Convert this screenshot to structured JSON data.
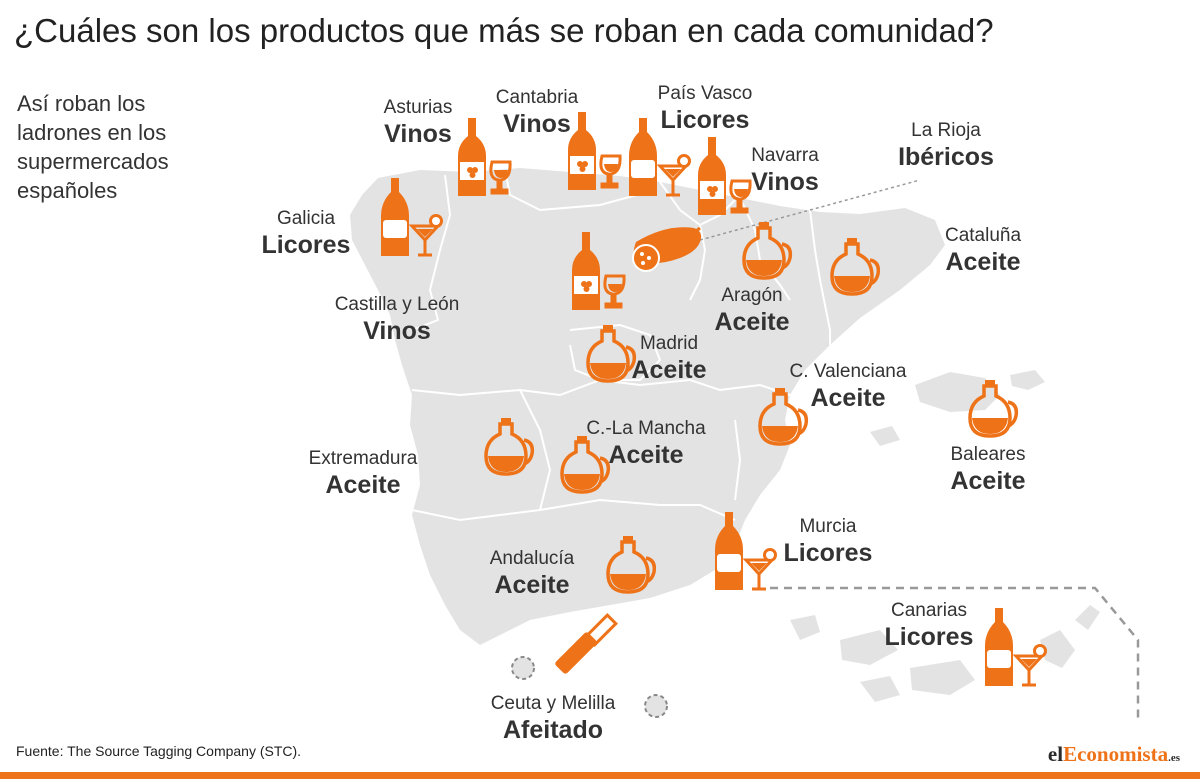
{
  "title": "¿Cuáles son los productos que más se roban en cada comunidad?",
  "subtitle": "Así roban los ladrones en los supermercados españoles",
  "regions": [
    {
      "name": "Asturias",
      "product": "Vinos",
      "icon": "wine-bottle-glass-icon"
    },
    {
      "name": "Cantabria",
      "product": "Vinos",
      "icon": "wine-bottle-glass-icon"
    },
    {
      "name": "País Vasco",
      "product": "Licores",
      "icon": "liquor-bottle-cocktail-icon"
    },
    {
      "name": "Navarra",
      "product": "Vinos",
      "icon": "wine-bottle-glass-icon"
    },
    {
      "name": "La Rioja",
      "product": "Ibéricos",
      "icon": "sausage-icon"
    },
    {
      "name": "Galicia",
      "product": "Licores",
      "icon": "liquor-bottle-cocktail-icon"
    },
    {
      "name": "Cataluña",
      "product": "Aceite",
      "icon": "oil-jug-icon"
    },
    {
      "name": "Castilla y León",
      "product": "Vinos",
      "icon": "wine-bottle-glass-icon"
    },
    {
      "name": "Aragón",
      "product": "Aceite",
      "icon": "oil-jug-icon"
    },
    {
      "name": "Madrid",
      "product": "Aceite",
      "icon": "oil-jug-icon"
    },
    {
      "name": "C. Valenciana",
      "product": "Aceite",
      "icon": "oil-jug-icon"
    },
    {
      "name": "C.-La Mancha",
      "product": "Aceite",
      "icon": "oil-jug-icon"
    },
    {
      "name": "Extremadura",
      "product": "Aceite",
      "icon": "oil-jug-icon"
    },
    {
      "name": "Baleares",
      "product": "Aceite",
      "icon": "oil-jug-icon"
    },
    {
      "name": "Murcia",
      "product": "Licores",
      "icon": "liquor-bottle-cocktail-icon"
    },
    {
      "name": "Andalucía",
      "product": "Aceite",
      "icon": "oil-jug-icon"
    },
    {
      "name": "Canarias",
      "product": "Licores",
      "icon": "liquor-bottle-cocktail-icon"
    },
    {
      "name": "Ceuta y Melilla",
      "product": "Afeitado",
      "icon": "razor-icon"
    }
  ],
  "source": "Fuente: The Source Tagging Company (STC).",
  "brand": {
    "part1": "el",
    "part2": "Economista",
    "part3": ".es"
  },
  "colors": {
    "accent": "#ee7218",
    "land": "#e3e3e3",
    "border": "#ffffff",
    "text": "#333333"
  }
}
